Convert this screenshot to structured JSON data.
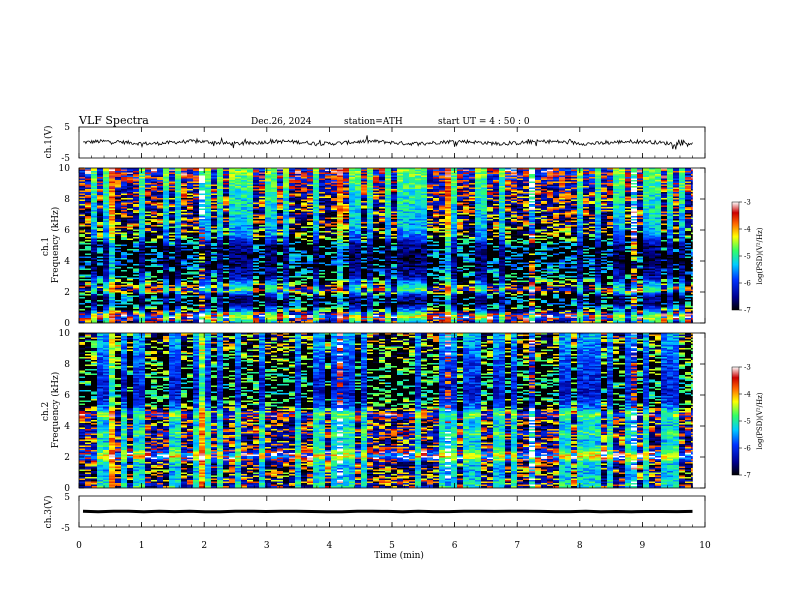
{
  "chart_data": {
    "type": "heatmap",
    "header": {
      "title": "VLF  Spectra",
      "date": "Dec.26, 2024",
      "station": "station=ATH",
      "start": "start  UT  =   4  : 50 : 0"
    },
    "xlabel": "Time  (min)",
    "xlim": [
      0,
      10
    ],
    "xticks": [
      "0",
      "1",
      "2",
      "3",
      "4",
      "5",
      "6",
      "7",
      "8",
      "9",
      "10"
    ],
    "data_end_min": 9.8,
    "panels": [
      {
        "id": "ch1-waveform",
        "type": "line",
        "ylabel": "ch.1(V)",
        "ylim": [
          -5,
          5
        ],
        "yticks": [
          "5",
          "-5"
        ],
        "trace_level_approx": 0,
        "trace_amplitude_approx": 1.2
      },
      {
        "id": "ch1-spectrogram",
        "type": "heatmap",
        "ylabel": "ch.1\nFrequency  (kHz)",
        "ylim": [
          0,
          10
        ],
        "yticks": [
          "0",
          "2",
          "4",
          "6",
          "8",
          "10"
        ],
        "colorbar": {
          "label": "log(PSD)(V²/Hz)",
          "range": [
            -7,
            -3
          ],
          "ticks": [
            "-3",
            "-4",
            "-5",
            "-6",
            "-7"
          ]
        },
        "band_profile_logpsd": [
          {
            "f_khz": 0.0,
            "v": -5.2
          },
          {
            "f_khz": 0.4,
            "v": -4.3
          },
          {
            "f_khz": 0.8,
            "v": -5.6
          },
          {
            "f_khz": 1.2,
            "v": -6.6
          },
          {
            "f_khz": 1.7,
            "v": -6.4
          },
          {
            "f_khz": 2.1,
            "v": -4.8
          },
          {
            "f_khz": 2.5,
            "v": -5.5
          },
          {
            "f_khz": 3.0,
            "v": -6.4
          },
          {
            "f_khz": 4.0,
            "v": -6.7
          },
          {
            "f_khz": 5.0,
            "v": -6.5
          },
          {
            "f_khz": 5.6,
            "v": -5.6
          },
          {
            "f_khz": 6.5,
            "v": -5.3
          },
          {
            "f_khz": 8.0,
            "v": -5.1
          },
          {
            "f_khz": 9.0,
            "v": -4.9
          },
          {
            "f_khz": 10.0,
            "v": -4.6
          }
        ]
      },
      {
        "id": "ch2-spectrogram",
        "type": "heatmap",
        "ylabel": "ch.2\nFrequency  (kHz)",
        "ylim": [
          0,
          10
        ],
        "yticks": [
          "0",
          "2",
          "4",
          "6",
          "8",
          "10"
        ],
        "colorbar": {
          "label": "log(PSD)(V²/Hz)",
          "range": [
            -7,
            -3
          ],
          "ticks": [
            "-3",
            "-4",
            "-5",
            "-6",
            "-7"
          ]
        },
        "band_profile_logpsd": [
          {
            "f_khz": 0.0,
            "v": -5.0
          },
          {
            "f_khz": 0.5,
            "v": -5.2
          },
          {
            "f_khz": 1.0,
            "v": -5.4
          },
          {
            "f_khz": 1.6,
            "v": -5.2
          },
          {
            "f_khz": 2.0,
            "v": -4.1
          },
          {
            "f_khz": 2.5,
            "v": -5.0
          },
          {
            "f_khz": 3.0,
            "v": -5.3
          },
          {
            "f_khz": 3.5,
            "v": -4.9
          },
          {
            "f_khz": 4.2,
            "v": -5.4
          },
          {
            "f_khz": 4.7,
            "v": -4.6
          },
          {
            "f_khz": 5.2,
            "v": -5.7
          },
          {
            "f_khz": 6.0,
            "v": -6.2
          },
          {
            "f_khz": 7.5,
            "v": -6.0
          },
          {
            "f_khz": 9.0,
            "v": -5.6
          },
          {
            "f_khz": 10.0,
            "v": -5.4
          }
        ]
      },
      {
        "id": "ch3-waveform",
        "type": "line",
        "ylabel": "ch.3(V)",
        "ylim": [
          -5,
          5
        ],
        "yticks": [
          "5",
          "-5"
        ],
        "trace_level_approx": 0,
        "trace_amplitude_approx": 0.2
      }
    ],
    "colormap": [
      "#000000",
      "#00008f",
      "#0033ff",
      "#00ccff",
      "#33ff66",
      "#ffff00",
      "#ff6600",
      "#cc0000",
      "#ffffff"
    ]
  }
}
